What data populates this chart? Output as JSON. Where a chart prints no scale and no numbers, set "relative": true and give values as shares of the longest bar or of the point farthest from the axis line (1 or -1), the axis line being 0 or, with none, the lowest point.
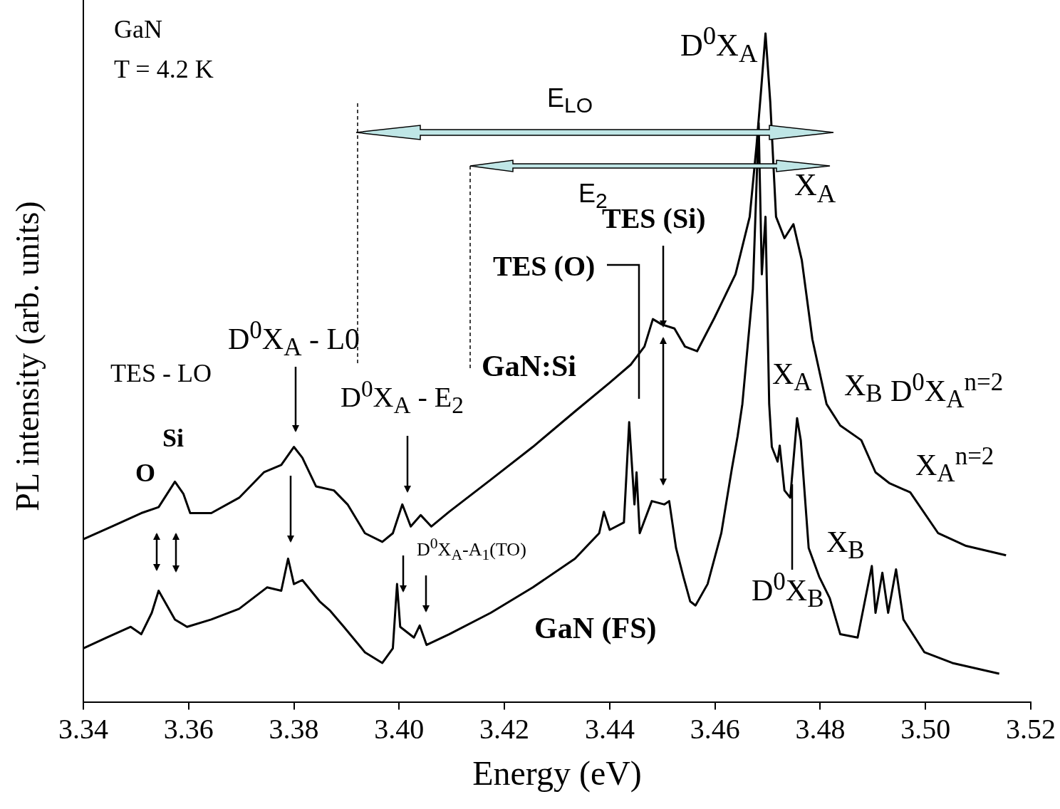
{
  "chart_data": {
    "type": "line",
    "relative": true,
    "xlabel": "Energy (eV)",
    "ylabel": "PL intensity (arb. units)",
    "xlim": [
      3.34,
      3.52
    ],
    "xticks": [
      3.34,
      3.36,
      3.38,
      {
        "value": 3.4,
        "label": "3.40"
      },
      3.42,
      3.44,
      3.46,
      3.48,
      {
        "value": 3.5,
        "label": "3.50"
      },
      3.52
    ],
    "grid": false,
    "legend": false,
    "annotations": [
      "GaN",
      "T = 4.2 K",
      "E$_{LO}$",
      "E$_{2}$",
      "D$^{0}$X$_{A}$",
      "X$_{A}$",
      "TES (Si)",
      "TES (O)",
      "D$^{0}$X$_{A}$ - L0",
      "TES - LO",
      "Si",
      "O",
      "D$^{0}$X$_{A}$ - E$_{2}$",
      "X$_{A}$",
      "X$_{B}$",
      "D$^{0}$X$_{A}$$^{n=2}$",
      "X$_{A}$$^{n=2}$",
      "D$^{0}$X$_{A}$-A$_{1}$(TO)",
      "D$^{0}$X$_{B}$",
      "X$_{B}$"
    ],
    "series": [
      {
        "name": "GaN:Si",
        "color": "#000000",
        "x": [
          3.34,
          3.3457,
          3.351,
          3.3543,
          3.3574,
          3.359,
          3.3603,
          3.3643,
          3.3696,
          3.3743,
          3.3776,
          3.38,
          3.3816,
          3.3842,
          3.3876,
          3.3902,
          3.3935,
          3.3968,
          3.3988,
          3.4006,
          3.4022,
          3.4041,
          3.4061,
          3.4095,
          3.4174,
          3.4254,
          3.4334,
          3.44,
          3.444,
          3.4466,
          3.4482,
          3.4499,
          3.4523,
          3.4543,
          3.4566,
          3.4599,
          3.4639,
          3.4666,
          3.4679,
          3.4688,
          3.4696,
          3.4705,
          3.4716,
          3.4732,
          3.4749,
          3.4765,
          3.4785,
          3.4812,
          3.4838,
          3.4878,
          3.4905,
          3.4931,
          3.4971,
          3.5024,
          3.5077,
          3.5153
        ],
        "values": [
          0.244,
          0.264,
          0.283,
          0.292,
          0.33,
          0.312,
          0.283,
          0.283,
          0.306,
          0.344,
          0.355,
          0.382,
          0.366,
          0.323,
          0.317,
          0.296,
          0.253,
          0.24,
          0.253,
          0.296,
          0.263,
          0.28,
          0.263,
          0.285,
          0.333,
          0.382,
          0.435,
          0.478,
          0.505,
          0.532,
          0.573,
          0.565,
          0.559,
          0.532,
          0.525,
          0.575,
          0.64,
          0.726,
          0.833,
          0.919,
          1.0,
          0.898,
          0.726,
          0.694,
          0.715,
          0.661,
          0.543,
          0.446,
          0.414,
          0.392,
          0.344,
          0.328,
          0.314,
          0.253,
          0.234,
          0.22
        ]
      },
      {
        "name": "GaN (FS)",
        "color": "#000000",
        "x": [
          3.34,
          3.3444,
          3.349,
          3.351,
          3.353,
          3.3543,
          3.3574,
          3.3597,
          3.3643,
          3.3696,
          3.3749,
          3.3776,
          3.3789,
          3.38,
          3.3816,
          3.3849,
          3.3869,
          3.3895,
          3.3935,
          3.3968,
          3.3988,
          3.3996,
          3.4002,
          3.4028,
          3.4039,
          3.4052,
          3.4095,
          3.4174,
          3.4254,
          3.4334,
          3.438,
          3.4389,
          3.44,
          3.4427,
          3.4437,
          3.4447,
          3.4451,
          3.4457,
          3.448,
          3.4504,
          3.4513,
          3.4526,
          3.454,
          3.4553,
          3.4563,
          3.4586,
          3.4612,
          3.4632,
          3.4643,
          3.4652,
          3.4672,
          3.4683,
          3.4689,
          3.4696,
          3.4703,
          3.4708,
          3.4719,
          3.4723,
          3.4732,
          3.4743,
          3.4756,
          3.4763,
          3.4778,
          3.4798,
          3.4818,
          3.4838,
          3.4871,
          3.4898,
          3.4905,
          3.4918,
          3.4929,
          3.4944,
          3.4958,
          3.4998,
          3.5051,
          3.514
        ],
        "values": [
          0.081,
          0.097,
          0.113,
          0.102,
          0.134,
          0.167,
          0.124,
          0.113,
          0.124,
          0.14,
          0.172,
          0.167,
          0.215,
          0.177,
          0.183,
          0.151,
          0.137,
          0.113,
          0.075,
          0.059,
          0.081,
          0.177,
          0.113,
          0.097,
          0.115,
          0.086,
          0.102,
          0.134,
          0.172,
          0.215,
          0.253,
          0.285,
          0.258,
          0.269,
          0.419,
          0.296,
          0.344,
          0.253,
          0.301,
          0.296,
          0.301,
          0.231,
          0.188,
          0.151,
          0.145,
          0.177,
          0.253,
          0.349,
          0.398,
          0.446,
          0.618,
          0.866,
          0.64,
          0.726,
          0.446,
          0.382,
          0.36,
          0.384,
          0.317,
          0.306,
          0.425,
          0.392,
          0.231,
          0.188,
          0.156,
          0.102,
          0.097,
          0.204,
          0.134,
          0.194,
          0.134,
          0.199,
          0.124,
          0.075,
          0.059,
          0.043
        ]
      }
    ]
  }
}
